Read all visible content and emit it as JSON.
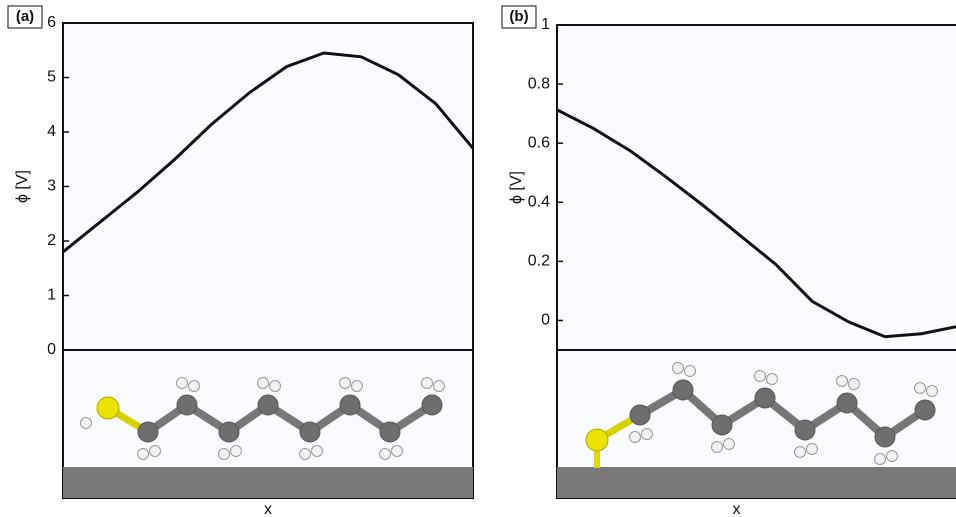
{
  "chart_data": [
    {
      "type": "line",
      "panel_label": "(a)",
      "xlabel": "x",
      "ylabel": "ϕ [V]",
      "categories": [
        null,
        null,
        null,
        null,
        null,
        null,
        null,
        null,
        null,
        null,
        null,
        null
      ],
      "values": [
        1.8,
        2.35,
        2.9,
        3.5,
        4.15,
        4.72,
        5.2,
        5.45,
        5.38,
        5.05,
        4.52,
        3.7
      ],
      "color": "#111111",
      "ylim": [
        0,
        6
      ],
      "yticks": [
        0,
        1,
        2,
        3,
        4,
        5,
        6
      ]
    },
    {
      "type": "line",
      "panel_label": "(b)",
      "xlabel": "x",
      "ylabel": "ϕ [V]",
      "categories": [
        null,
        null,
        null,
        null,
        null,
        null,
        null,
        null,
        null,
        null,
        null,
        null
      ],
      "values": [
        0.713,
        0.65,
        0.575,
        0.485,
        0.39,
        0.29,
        0.19,
        0.065,
        -0.005,
        -0.055,
        -0.045,
        -0.02
      ],
      "color": "#111111",
      "ylim": [
        -0.1,
        1
      ],
      "yticks": [
        0,
        0.2,
        0.4,
        0.6,
        0.8,
        1
      ]
    }
  ]
}
